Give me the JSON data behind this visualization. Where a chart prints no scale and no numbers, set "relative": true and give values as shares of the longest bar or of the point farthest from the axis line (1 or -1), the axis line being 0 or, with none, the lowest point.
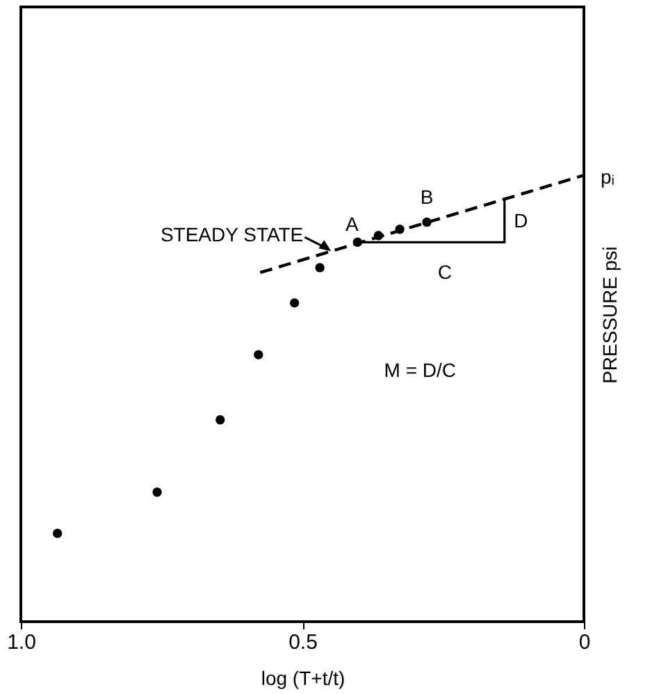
{
  "chart_data": {
    "type": "scatter",
    "relative": true,
    "xlabel": "log (T+t/t)",
    "ylabel": "PRESSURE psi",
    "xlim": [
      1.0,
      0
    ],
    "xticks": [
      {
        "value": 1.0,
        "label": "1.0"
      },
      0.5,
      0
    ],
    "grid": false,
    "marker": "circle",
    "series": [
      {
        "color": "#000000",
        "x": [
          0.935,
          0.758,
          0.646,
          0.578,
          0.514,
          0.469,
          0.402,
          0.365,
          0.327,
          0.279
        ],
        "values": [
          0.198,
          0.29,
          0.452,
          0.598,
          0.714,
          0.793,
          0.85,
          0.865,
          0.879,
          0.895
        ]
      },
      {
        "type": "line",
        "color": "#000000",
        "line_style": "dashed",
        "marker": "none",
        "x": [
          0.575,
          0
        ],
        "values": [
          0.782,
          1
        ]
      }
    ],
    "annotations": [
      {
        "text": "STEADY STATE",
        "x": 0.449,
        "y": 0.83
      },
      {
        "text": "A",
        "x": 0.402,
        "y": 0.85
      },
      {
        "text": "B",
        "x": 0.279,
        "y": 0.895
      },
      {
        "text": "pᵢ",
        "x": 0,
        "y": 1
      },
      "C",
      "D",
      "M = D/C"
    ]
  }
}
